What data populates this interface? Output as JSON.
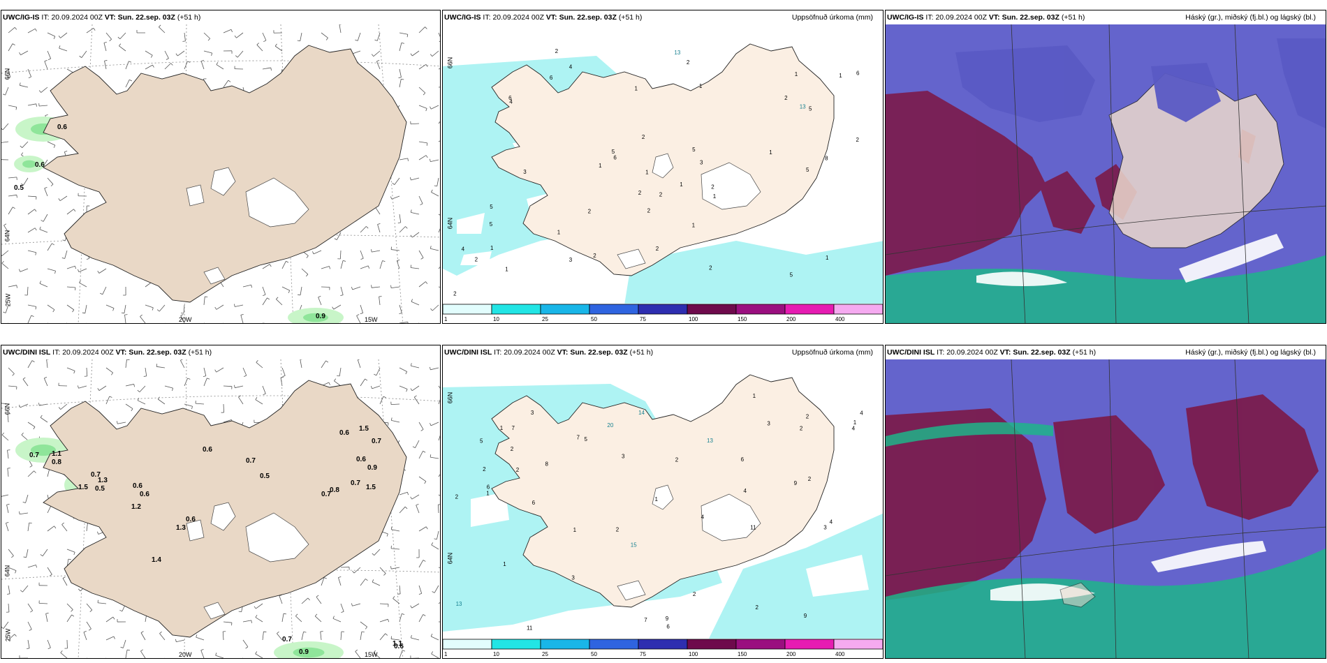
{
  "colors": {
    "land": "#e9d8c6",
    "land_light": "#f7ebe0",
    "sea_precip": "#aef3f3",
    "green_light": "#c8f5c8",
    "green_mid": "#8fe59a",
    "green_dark": "#3fbf5a",
    "cloud_high": "#6a6ad0",
    "cloud_mid": "#7b1a4a",
    "cloud_low": "#1fb48a"
  },
  "cbar": {
    "colors": [
      "#e2fdfd",
      "#22e5e5",
      "#19b6e8",
      "#2f64e0",
      "#2e2eb0",
      "#6e0a4c",
      "#9a0f7f",
      "#e61cb2",
      "#f5aaf0"
    ],
    "ticks": [
      "1",
      "10",
      "25",
      "50",
      "75",
      "100",
      "150",
      "200",
      "400"
    ]
  },
  "rows": [
    {
      "wind": {
        "model": "UWC/IG-IS",
        "it_label": "IT:",
        "it": "20.09.2024 00Z",
        "vt_label": "VT:",
        "vt": "Sun. 22.sep. 03Z",
        "lead": "(+51 h)",
        "lat_labels": [
          "66N",
          "64N",
          "25W"
        ],
        "lon_labels": [
          "20W",
          "15W"
        ],
        "values": [
          "0.6",
          "0.6",
          "0.5",
          "0.9"
        ]
      },
      "precip": {
        "model": "UWC/IG-IS",
        "it_label": "IT:",
        "it": "20.09.2024 00Z",
        "vt_label": "VT:",
        "vt": "Sun. 22.sep. 03Z",
        "lead": "(+51 h)",
        "title": "Uppsöfnuð úrkoma (mm)",
        "lat_labels": [
          "66N",
          "64N"
        ],
        "values": [
          "6",
          "8",
          "6",
          "5",
          "5",
          "4",
          "3",
          "3",
          "2",
          "1",
          "2",
          "4",
          "6",
          "6",
          "2",
          "2",
          "1",
          "13",
          "13",
          "2",
          "5",
          "5",
          "1",
          "2",
          "2",
          "1",
          "1",
          "2",
          "1",
          "1",
          "1",
          "2",
          "2",
          "2",
          "1",
          "1",
          "2",
          "2",
          "1",
          "1",
          "1",
          "1",
          "2",
          "3",
          "5",
          "5",
          "5",
          "4",
          "2"
        ]
      },
      "cloud": {
        "model": "UWC/IG-IS",
        "it_label": "IT:",
        "it": "20.09.2024 00Z",
        "vt_label": "VT:",
        "vt": "Sun. 22.sep. 03Z",
        "lead": "(+51 h)",
        "title": "Háský (gr.), miðský (fj.bl.) og lágský (bl.)"
      }
    },
    {
      "wind": {
        "model": "UWC/DINI ISL",
        "it_label": "IT:",
        "it": "20.09.2024 00Z",
        "vt_label": "VT:",
        "vt": "Sun. 22.sep. 03Z",
        "lead": "(+51 h)",
        "lat_labels": [
          "66N",
          "64N",
          "25W"
        ],
        "lon_labels": [
          "20W",
          "15W"
        ],
        "values": [
          "0.7",
          "1.1",
          "0.8",
          "0.7",
          "1.3",
          "1.5",
          "0.5",
          "0.6",
          "0.6",
          "1.2",
          "0.6",
          "1.3",
          "1.4",
          "0.6",
          "0.7",
          "0.5",
          "0.8",
          "0.7",
          "1.5",
          "0.6",
          "0.9",
          "1.5",
          "0.7",
          "0.6",
          "0.7",
          "0.9",
          "0.6",
          "0.7",
          "1.1"
        ]
      },
      "precip": {
        "model": "UWC/DINI ISL",
        "it_label": "IT:",
        "it": "20.09.2024 00Z",
        "vt_label": "VT:",
        "vt": "Sun. 22.sep. 03Z",
        "lead": "(+51 h)",
        "title": "Uppsöfnuð úrkoma (mm)",
        "lat_labels": [
          "66N",
          "64N"
        ],
        "values": [
          "6",
          "7",
          "13",
          "9",
          "11",
          "8",
          "13",
          "11",
          "15",
          "7",
          "6",
          "4",
          "14",
          "6",
          "2",
          "2",
          "3",
          "5",
          "6",
          "9",
          "9",
          "7",
          "20",
          "4",
          "2",
          "1",
          "1",
          "2",
          "3",
          "4",
          "5",
          "2",
          "2",
          "1",
          "1",
          "2",
          "2",
          "3",
          "1",
          "3",
          "4",
          "2",
          "2",
          "1",
          "1",
          "2",
          "3",
          "4"
        ]
      },
      "cloud": {
        "model": "UWC/DINI ISL",
        "it_label": "IT:",
        "it": "20.09.2024 00Z",
        "vt_label": "VT:",
        "vt": "Sun. 22.sep. 03Z",
        "lead": "(+51 h)",
        "title": "Háský (gr.), miðský (fj.bl.) og lágský (bl.)"
      }
    }
  ]
}
